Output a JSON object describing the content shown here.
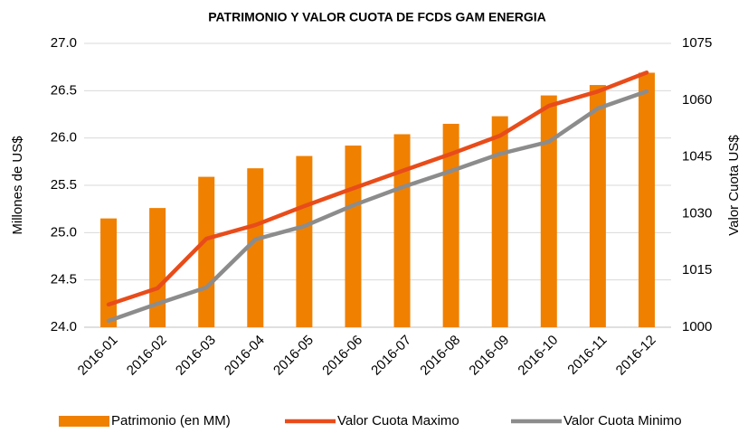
{
  "chart_data": {
    "type": "bar-line",
    "title": "PATRIMONIO Y VALOR CUOTA DE FCDS GAM ENERGIA",
    "ylabel": "Millones de US$",
    "y2label": "Valor Cuota US$",
    "categories": [
      "2016-01",
      "2016-02",
      "2016-03",
      "2016-04",
      "2016-05",
      "2016-06",
      "2016-07",
      "2016-08",
      "2016-09",
      "2016-10",
      "2016-11",
      "2016-12"
    ],
    "series": [
      {
        "name": "Patrimonio (en MM)",
        "color": "#f08000",
        "kind": "bar",
        "values": [
          25.15,
          25.26,
          25.59,
          25.68,
          25.81,
          25.92,
          26.04,
          26.15,
          26.23,
          26.45,
          26.56,
          26.69
        ]
      },
      {
        "name": "Valor Cuota Maximo",
        "color": "#e84c1a",
        "kind": "line",
        "axis": "y2",
        "values": [
          1006,
          1010.3,
          1023.4,
          1027,
          1032,
          1036.7,
          1041.3,
          1045.8,
          1050.6,
          1058.5,
          1062.3,
          1067.3
        ]
      },
      {
        "name": "Valor Cuota Minimo",
        "color": "#8c8c8c",
        "kind": "line",
        "axis": "y2",
        "values": [
          1001.7,
          1006.2,
          1010.5,
          1023.2,
          1026.7,
          1032.2,
          1037,
          1041.3,
          1045.8,
          1049,
          1057.8,
          1062.3
        ]
      }
    ],
    "ylim": [
      24,
      27
    ],
    "yticks": [
      {
        "value": 24,
        "label": "24.0"
      },
      24.5,
      {
        "value": 25,
        "label": "25.0"
      },
      25.5,
      {
        "value": 26,
        "label": "26.0"
      },
      26.5,
      {
        "value": 27,
        "label": "27.0"
      }
    ],
    "y2lim": [
      1000,
      1075
    ],
    "y2ticks": [
      1000,
      1015,
      1030,
      1045,
      1060,
      1075
    ],
    "grid": true,
    "legend": "bottom"
  }
}
